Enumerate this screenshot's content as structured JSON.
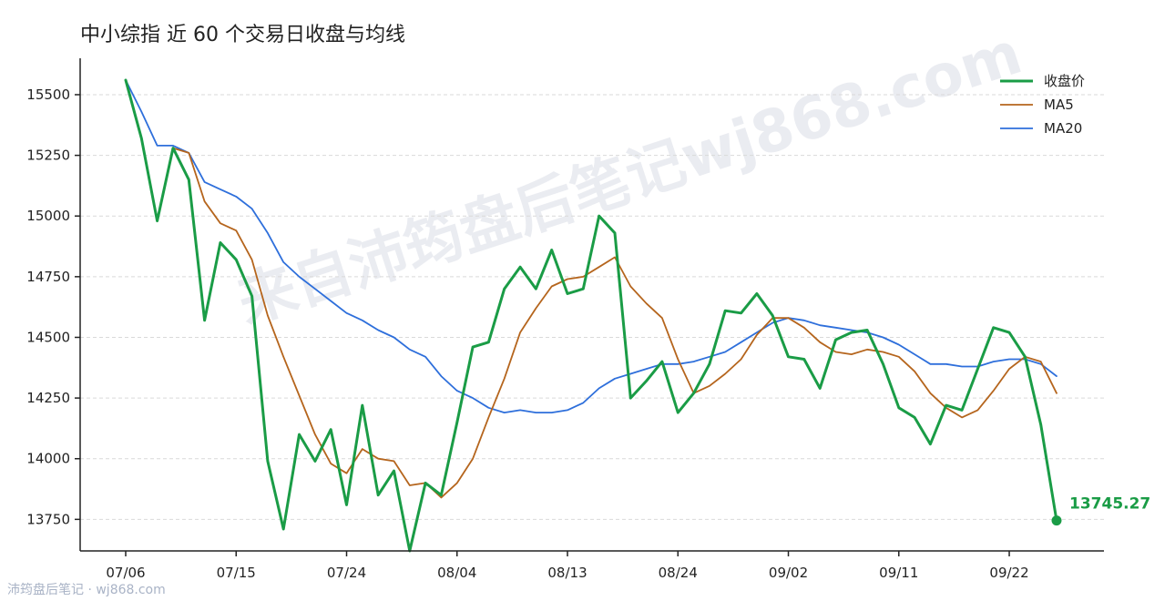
{
  "chart_data": {
    "type": "line",
    "title": "中小综指 近 60 个交易日收盘与均线",
    "xlabel": "",
    "ylabel": "",
    "ylim": [
      13620,
      15650
    ],
    "yticks": [
      13750,
      14000,
      14250,
      14500,
      14750,
      15000,
      15250,
      15500
    ],
    "xtick_labels": [
      "07/06",
      "07/15",
      "07/24",
      "08/04",
      "08/13",
      "08/24",
      "09/02",
      "09/11",
      "09/22"
    ],
    "x": [
      "07/06",
      "07/07",
      "07/08",
      "07/09",
      "07/10",
      "07/13",
      "07/14",
      "07/15",
      "07/16",
      "07/17",
      "07/20",
      "07/21",
      "07/22",
      "07/23",
      "07/24",
      "07/27",
      "07/28",
      "07/29",
      "07/30",
      "07/31",
      "08/03",
      "08/04",
      "08/05",
      "08/06",
      "08/07",
      "08/10",
      "08/11",
      "08/12",
      "08/13",
      "08/14",
      "08/17",
      "08/18",
      "08/19",
      "08/20",
      "08/21",
      "08/24",
      "08/25",
      "08/26",
      "08/27",
      "08/28",
      "08/31",
      "09/01",
      "09/02",
      "09/03",
      "09/04",
      "09/07",
      "09/08",
      "09/09",
      "09/10",
      "09/11",
      "09/14",
      "09/15",
      "09/16",
      "09/17",
      "09/18",
      "09/21",
      "09/22",
      "09/23",
      "09/24",
      "09/25"
    ],
    "grid": true,
    "legend": "top-right",
    "series": [
      {
        "name": "收盘价",
        "color": "#1a9c46",
        "values": [
          15560,
          15320,
          14980,
          15280,
          15150,
          14570,
          14890,
          14820,
          14670,
          13990,
          13710,
          14100,
          13990,
          14120,
          13810,
          14220,
          13850,
          13950,
          13620,
          13900,
          13850,
          14150,
          14460,
          14480,
          14700,
          14790,
          14700,
          14860,
          14680,
          14700,
          15000,
          14930,
          14250,
          14320,
          14400,
          14190,
          14270,
          14390,
          14610,
          14600,
          14680,
          14590,
          14420,
          14410,
          14290,
          14490,
          14520,
          14530,
          14390,
          14210,
          14170,
          14060,
          14220,
          14200,
          14370,
          14540,
          14520,
          14420,
          14140,
          13745.27
        ]
      },
      {
        "name": "MA5",
        "color": "#b5651d",
        "values": [
          15560,
          15320,
          14980,
          15280,
          15260,
          15060,
          14970,
          14940,
          14820,
          14590,
          14420,
          14260,
          14100,
          13980,
          13940,
          14040,
          14000,
          13990,
          13890,
          13900,
          13840,
          13900,
          14000,
          14170,
          14330,
          14520,
          14620,
          14710,
          14740,
          14750,
          14790,
          14830,
          14710,
          14640,
          14580,
          14410,
          14270,
          14300,
          14350,
          14410,
          14510,
          14580,
          14580,
          14540,
          14480,
          14440,
          14430,
          14450,
          14440,
          14420,
          14360,
          14270,
          14210,
          14170,
          14200,
          14280,
          14370,
          14420,
          14400,
          14270
        ]
      },
      {
        "name": "MA20",
        "color": "#2e6fdb",
        "values": [
          15560,
          15430,
          15290,
          15290,
          15260,
          15140,
          15110,
          15080,
          15030,
          14930,
          14810,
          14750,
          14700,
          14650,
          14600,
          14570,
          14530,
          14500,
          14450,
          14420,
          14340,
          14280,
          14250,
          14210,
          14190,
          14200,
          14190,
          14190,
          14200,
          14230,
          14290,
          14330,
          14350,
          14370,
          14390,
          14390,
          14400,
          14420,
          14440,
          14480,
          14520,
          14560,
          14580,
          14570,
          14550,
          14540,
          14530,
          14520,
          14500,
          14470,
          14430,
          14390,
          14390,
          14380,
          14380,
          14400,
          14410,
          14410,
          14390,
          14340
        ]
      }
    ],
    "last_value_label": "13745.27"
  },
  "watermark_text": "来自沛筠盘后笔记wj868.com",
  "footer_text": "沛筠盘后笔记 · wj868.com"
}
